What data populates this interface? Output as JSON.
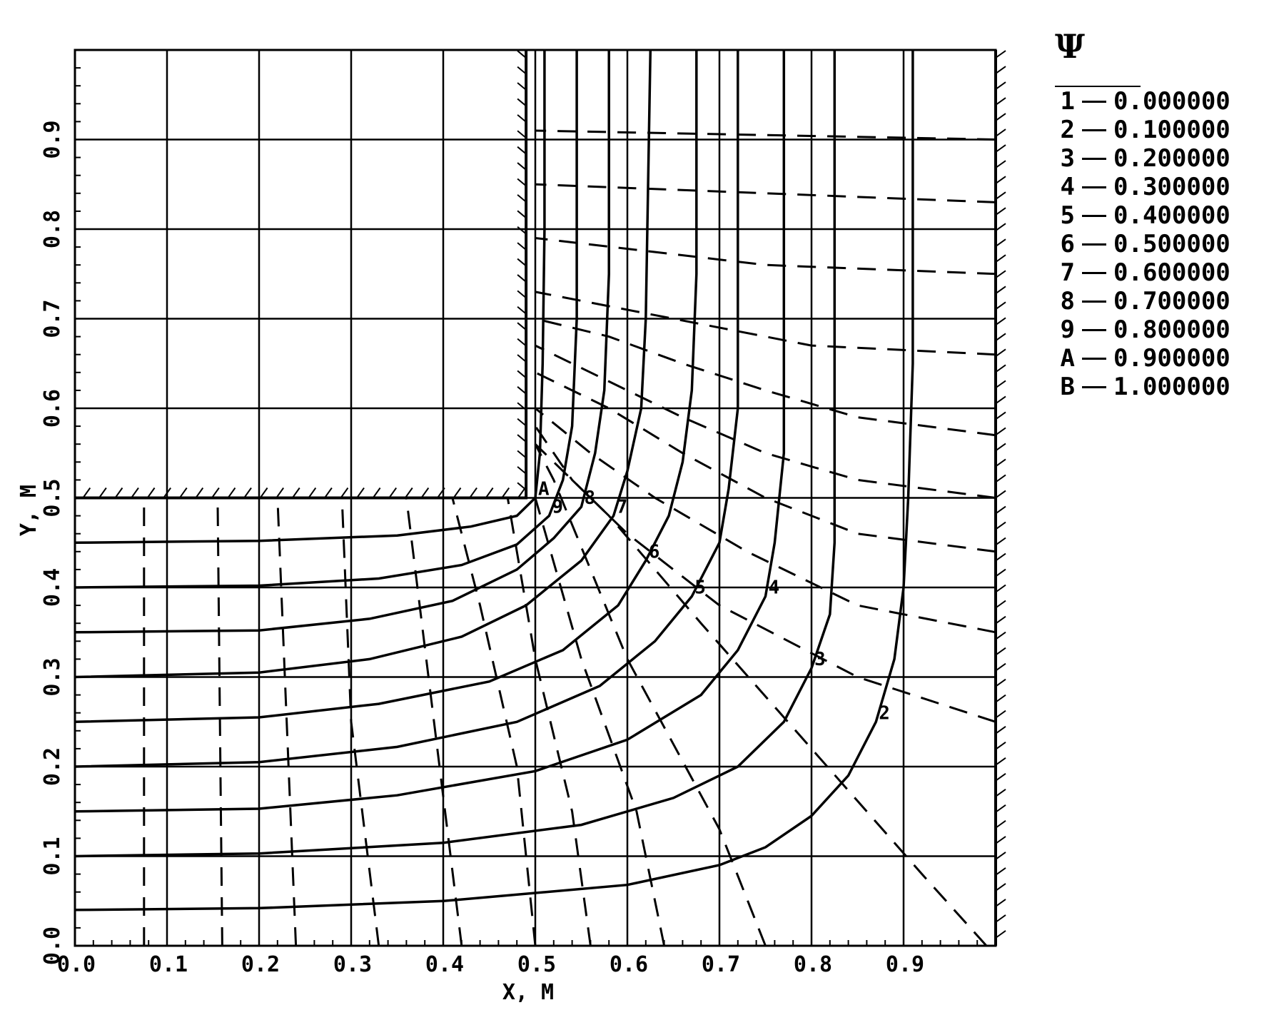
{
  "chart_data": {
    "type": "line",
    "title": "",
    "xlabel": "X, M",
    "ylabel": "Y, M",
    "xlim": [
      0,
      1.0
    ],
    "ylim": [
      0,
      1.0
    ],
    "grid": true,
    "x_ticks": [
      "0.0",
      "0.1",
      "0.2",
      "0.3",
      "0.4",
      "0.5",
      "0.6",
      "0.7",
      "0.8",
      "0.9"
    ],
    "y_ticks": [
      "0.0",
      "0.1",
      "0.2",
      "0.3",
      "0.4",
      "0.5",
      "0.6",
      "0.7",
      "0.8",
      "0.9"
    ],
    "tick_values": [
      0,
      0.1,
      0.2,
      0.3,
      0.4,
      0.5,
      0.6,
      0.7,
      0.8,
      0.9
    ],
    "legend_symbol": "Ψ",
    "legend_placement": "top-right",
    "legend": [
      {
        "key": "1",
        "value": "0.000000"
      },
      {
        "key": "2",
        "value": "0.100000"
      },
      {
        "key": "3",
        "value": "0.200000"
      },
      {
        "key": "4",
        "value": "0.300000"
      },
      {
        "key": "5",
        "value": "0.400000"
      },
      {
        "key": "6",
        "value": "0.500000"
      },
      {
        "key": "7",
        "value": "0.600000"
      },
      {
        "key": "8",
        "value": "0.700000"
      },
      {
        "key": "9",
        "value": "0.800000"
      },
      {
        "key": "A",
        "value": "0.900000"
      },
      {
        "key": "B",
        "value": "1.000000"
      }
    ],
    "series": [
      {
        "label": "2",
        "style": "solid",
        "points": [
          [
            0,
            0.04
          ],
          [
            0.2,
            0.042
          ],
          [
            0.4,
            0.05
          ],
          [
            0.6,
            0.068
          ],
          [
            0.7,
            0.09
          ],
          [
            0.75,
            0.11
          ],
          [
            0.8,
            0.145
          ],
          [
            0.84,
            0.19
          ],
          [
            0.87,
            0.25
          ],
          [
            0.89,
            0.32
          ],
          [
            0.9,
            0.4
          ],
          [
            0.905,
            0.5
          ],
          [
            0.91,
            0.65
          ],
          [
            0.91,
            0.8
          ],
          [
            0.91,
            1.0
          ]
        ]
      },
      {
        "label": "3",
        "style": "solid",
        "points": [
          [
            0,
            0.1
          ],
          [
            0.2,
            0.103
          ],
          [
            0.4,
            0.115
          ],
          [
            0.55,
            0.135
          ],
          [
            0.65,
            0.165
          ],
          [
            0.72,
            0.2
          ],
          [
            0.77,
            0.25
          ],
          [
            0.8,
            0.31
          ],
          [
            0.82,
            0.37
          ],
          [
            0.825,
            0.45
          ],
          [
            0.825,
            0.55
          ],
          [
            0.825,
            0.65
          ],
          [
            0.825,
            0.8
          ],
          [
            0.825,
            1.0
          ]
        ]
      },
      {
        "label": "4",
        "style": "solid",
        "points": [
          [
            0,
            0.15
          ],
          [
            0.2,
            0.153
          ],
          [
            0.35,
            0.168
          ],
          [
            0.5,
            0.195
          ],
          [
            0.6,
            0.23
          ],
          [
            0.68,
            0.28
          ],
          [
            0.72,
            0.33
          ],
          [
            0.75,
            0.39
          ],
          [
            0.76,
            0.45
          ],
          [
            0.77,
            0.55
          ],
          [
            0.77,
            0.7
          ],
          [
            0.77,
            0.85
          ],
          [
            0.77,
            1.0
          ]
        ]
      },
      {
        "label": "5",
        "style": "solid",
        "points": [
          [
            0,
            0.2
          ],
          [
            0.2,
            0.205
          ],
          [
            0.35,
            0.222
          ],
          [
            0.48,
            0.25
          ],
          [
            0.57,
            0.29
          ],
          [
            0.63,
            0.34
          ],
          [
            0.67,
            0.39
          ],
          [
            0.7,
            0.45
          ],
          [
            0.71,
            0.51
          ],
          [
            0.72,
            0.6
          ],
          [
            0.72,
            0.75
          ],
          [
            0.72,
            1.0
          ]
        ]
      },
      {
        "label": "6",
        "style": "solid",
        "points": [
          [
            0,
            0.25
          ],
          [
            0.2,
            0.255
          ],
          [
            0.33,
            0.27
          ],
          [
            0.45,
            0.295
          ],
          [
            0.53,
            0.33
          ],
          [
            0.59,
            0.38
          ],
          [
            0.62,
            0.43
          ],
          [
            0.645,
            0.48
          ],
          [
            0.66,
            0.54
          ],
          [
            0.67,
            0.62
          ],
          [
            0.675,
            0.75
          ],
          [
            0.675,
            1.0
          ]
        ]
      },
      {
        "label": "7",
        "style": "solid",
        "points": [
          [
            0,
            0.3
          ],
          [
            0.2,
            0.305
          ],
          [
            0.32,
            0.32
          ],
          [
            0.42,
            0.345
          ],
          [
            0.49,
            0.38
          ],
          [
            0.55,
            0.43
          ],
          [
            0.585,
            0.48
          ],
          [
            0.6,
            0.53
          ],
          [
            0.615,
            0.6
          ],
          [
            0.62,
            0.7
          ],
          [
            0.625,
            1.0
          ]
        ]
      },
      {
        "label": "8",
        "style": "solid",
        "points": [
          [
            0,
            0.35
          ],
          [
            0.2,
            0.352
          ],
          [
            0.32,
            0.365
          ],
          [
            0.41,
            0.385
          ],
          [
            0.48,
            0.42
          ],
          [
            0.52,
            0.455
          ],
          [
            0.55,
            0.49
          ],
          [
            0.565,
            0.55
          ],
          [
            0.575,
            0.62
          ],
          [
            0.58,
            0.75
          ],
          [
            0.58,
            1.0
          ]
        ]
      },
      {
        "label": "9",
        "style": "solid",
        "points": [
          [
            0,
            0.4
          ],
          [
            0.2,
            0.402
          ],
          [
            0.33,
            0.41
          ],
          [
            0.42,
            0.425
          ],
          [
            0.48,
            0.448
          ],
          [
            0.515,
            0.48
          ],
          [
            0.53,
            0.52
          ],
          [
            0.54,
            0.58
          ],
          [
            0.545,
            0.7
          ],
          [
            0.545,
            1.0
          ]
        ]
      },
      {
        "label": "A",
        "style": "solid",
        "points": [
          [
            0,
            0.45
          ],
          [
            0.2,
            0.452
          ],
          [
            0.35,
            0.458
          ],
          [
            0.43,
            0.468
          ],
          [
            0.48,
            0.48
          ],
          [
            0.5,
            0.5
          ],
          [
            0.505,
            0.55
          ],
          [
            0.508,
            0.65
          ],
          [
            0.51,
            0.8
          ],
          [
            0.51,
            1.0
          ]
        ]
      }
    ],
    "equipotentials": [
      {
        "style": "dashed",
        "points": [
          [
            0.075,
            0
          ],
          [
            0.075,
            0.5
          ]
        ]
      },
      {
        "style": "dashed",
        "points": [
          [
            0.16,
            0
          ],
          [
            0.155,
            0.5
          ]
        ]
      },
      {
        "style": "dashed",
        "points": [
          [
            0.24,
            0
          ],
          [
            0.22,
            0.5
          ]
        ]
      },
      {
        "style": "dashed",
        "points": [
          [
            0.33,
            0
          ],
          [
            0.3,
            0.25
          ],
          [
            0.29,
            0.5
          ]
        ]
      },
      {
        "style": "dashed",
        "points": [
          [
            0.42,
            0
          ],
          [
            0.39,
            0.25
          ],
          [
            0.36,
            0.5
          ]
        ]
      },
      {
        "style": "dashed",
        "points": [
          [
            0.5,
            0
          ],
          [
            0.48,
            0.2
          ],
          [
            0.44,
            0.38
          ],
          [
            0.41,
            0.5
          ]
        ]
      },
      {
        "style": "dashed",
        "points": [
          [
            0.56,
            0
          ],
          [
            0.54,
            0.15
          ],
          [
            0.5,
            0.32
          ],
          [
            0.47,
            0.5
          ]
        ]
      },
      {
        "style": "dashed",
        "points": [
          [
            0.64,
            0
          ],
          [
            0.61,
            0.15
          ],
          [
            0.55,
            0.32
          ],
          [
            0.5,
            0.5
          ]
        ]
      },
      {
        "style": "dashed",
        "points": [
          [
            0.75,
            0
          ],
          [
            0.7,
            0.13
          ],
          [
            0.6,
            0.32
          ],
          [
            0.52,
            0.52
          ],
          [
            0.5,
            0.56
          ]
        ]
      },
      {
        "style": "dashed",
        "points": [
          [
            0.99,
            0
          ],
          [
            0.92,
            0.08
          ],
          [
            0.8,
            0.22
          ],
          [
            0.68,
            0.36
          ],
          [
            0.58,
            0.48
          ],
          [
            0.52,
            0.54
          ],
          [
            0.5,
            0.56
          ]
        ]
      },
      {
        "style": "dashed",
        "points": [
          [
            1.0,
            0.25
          ],
          [
            0.85,
            0.3
          ],
          [
            0.7,
            0.38
          ],
          [
            0.6,
            0.46
          ],
          [
            0.54,
            0.52
          ],
          [
            0.5,
            0.58
          ]
        ]
      },
      {
        "style": "dashed",
        "points": [
          [
            1.0,
            0.35
          ],
          [
            0.85,
            0.38
          ],
          [
            0.73,
            0.44
          ],
          [
            0.63,
            0.5
          ],
          [
            0.56,
            0.55
          ],
          [
            0.5,
            0.6
          ]
        ]
      },
      {
        "style": "dashed",
        "points": [
          [
            1.0,
            0.44
          ],
          [
            0.85,
            0.46
          ],
          [
            0.75,
            0.5
          ],
          [
            0.66,
            0.55
          ],
          [
            0.58,
            0.6
          ],
          [
            0.5,
            0.64
          ]
        ]
      },
      {
        "style": "dashed",
        "points": [
          [
            1.0,
            0.5
          ],
          [
            0.85,
            0.52
          ],
          [
            0.75,
            0.55
          ],
          [
            0.66,
            0.59
          ],
          [
            0.58,
            0.63
          ],
          [
            0.5,
            0.67
          ]
        ]
      },
      {
        "style": "dashed",
        "points": [
          [
            1.0,
            0.57
          ],
          [
            0.85,
            0.59
          ],
          [
            0.75,
            0.62
          ],
          [
            0.66,
            0.65
          ],
          [
            0.58,
            0.68
          ],
          [
            0.5,
            0.7
          ]
        ]
      },
      {
        "style": "dashed",
        "points": [
          [
            1.0,
            0.66
          ],
          [
            0.8,
            0.67
          ],
          [
            0.65,
            0.7
          ],
          [
            0.5,
            0.73
          ]
        ]
      },
      {
        "style": "dashed",
        "points": [
          [
            1.0,
            0.75
          ],
          [
            0.75,
            0.76
          ],
          [
            0.5,
            0.79
          ]
        ]
      },
      {
        "style": "dashed",
        "points": [
          [
            1.0,
            0.83
          ],
          [
            0.75,
            0.84
          ],
          [
            0.5,
            0.85
          ]
        ]
      },
      {
        "style": "dashed",
        "points": [
          [
            1.0,
            0.9
          ],
          [
            0.75,
            0.905
          ],
          [
            0.5,
            0.91
          ]
        ]
      }
    ],
    "walls": [
      {
        "points": [
          [
            0,
            0.5
          ],
          [
            0.49,
            0.5
          ],
          [
            0.49,
            1.0
          ]
        ]
      },
      {
        "points": [
          [
            1.0,
            0
          ],
          [
            1.0,
            1.0
          ]
        ]
      }
    ]
  }
}
